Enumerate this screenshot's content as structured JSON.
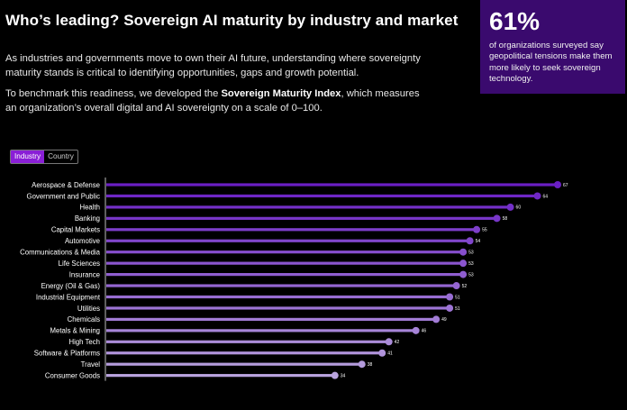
{
  "header": {
    "title": "Who’s leading? Sovereign AI maturity by industry and market",
    "para1": "As industries and governments move to own their AI future, understanding where sovereignty maturity stands is critical to identifying opportunities, gaps and growth potential.",
    "para2_prefix": "To benchmark this readiness, we developed the ",
    "para2_bold": "Sovereign Maturity Index",
    "para2_suffix": ", which measures an organization’s overall digital and AI sovereignty on a scale of 0–100."
  },
  "stat": {
    "value": "61%",
    "text": "of organizations surveyed say geopolitical tensions make them more likely to seek sovereign technology."
  },
  "toggle": {
    "industry": "Industry",
    "country": "Country"
  },
  "chart_data": {
    "type": "lollipop",
    "orientation": "horizontal",
    "xlim": [
      0,
      100
    ],
    "categories": [
      "Aerospace & Defense",
      "Government and Public",
      "Health",
      "Banking",
      "Capital Markets",
      "Automotive",
      "Communications & Media",
      "Life Sciences",
      "Insurance",
      "Energy (Oil & Gas)",
      "Industrial Equipment",
      "Utilities",
      "Chemicals",
      "Metals & Mining",
      "High Tech",
      "Software & Platforms",
      "Travel",
      "Consumer Goods"
    ],
    "values": [
      67,
      64,
      60,
      58,
      55,
      54,
      53,
      53,
      53,
      52,
      51,
      51,
      49,
      46,
      42,
      41,
      38,
      34
    ],
    "colors": {
      "start": "#6a1fc4",
      "end": "#b9a3de"
    }
  }
}
